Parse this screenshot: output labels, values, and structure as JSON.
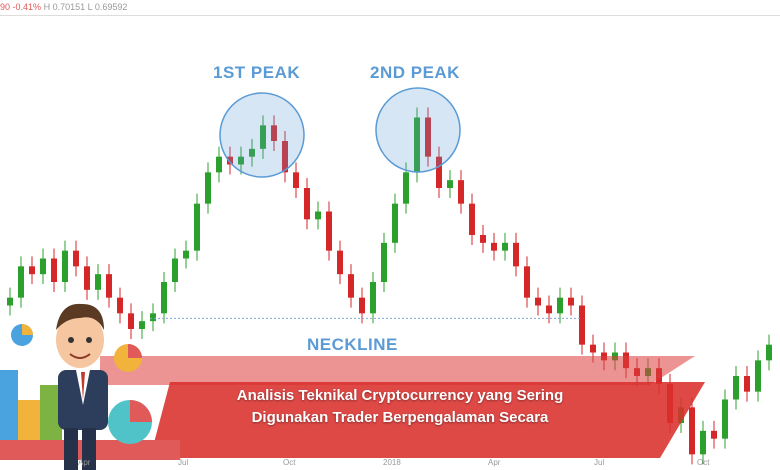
{
  "header": {
    "change_prefix": "90",
    "change_pct": "-0.41%",
    "high": "H 0.70151",
    "low": "L 0.69592"
  },
  "colors": {
    "up": "#2ca02c",
    "down": "#d62728",
    "annotation": "#5b9bd5",
    "banner": "#d9302c"
  },
  "annotations": {
    "peak1": "1ST PEAK",
    "peak2": "2ND PEAK",
    "neckline": "NECKLINE"
  },
  "banner": {
    "line1": "Analisis Teknikal Cryptocurrency yang Sering",
    "line2": "Digunakan Trader Berpengalaman Secara"
  },
  "chart_data": {
    "type": "candlestick",
    "pattern": "double top",
    "xticks": [
      "Apr",
      "Jul",
      "Oct",
      "2018",
      "Apr",
      "Jul",
      "Oct"
    ],
    "ylim": [
      0.6,
      0.9
    ],
    "neckline": 0.7,
    "closes": [
      0.71,
      0.73,
      0.725,
      0.735,
      0.72,
      0.74,
      0.73,
      0.715,
      0.725,
      0.71,
      0.7,
      0.69,
      0.695,
      0.7,
      0.72,
      0.735,
      0.74,
      0.77,
      0.79,
      0.8,
      0.795,
      0.8,
      0.805,
      0.82,
      0.81,
      0.79,
      0.78,
      0.76,
      0.765,
      0.74,
      0.725,
      0.71,
      0.7,
      0.72,
      0.745,
      0.77,
      0.79,
      0.825,
      0.8,
      0.78,
      0.785,
      0.77,
      0.75,
      0.745,
      0.74,
      0.745,
      0.73,
      0.71,
      0.705,
      0.7,
      0.71,
      0.705,
      0.68,
      0.675,
      0.67,
      0.675,
      0.665,
      0.66,
      0.665,
      0.655,
      0.63,
      0.64,
      0.61,
      0.625,
      0.62,
      0.645,
      0.66,
      0.65,
      0.67,
      0.68
    ]
  }
}
